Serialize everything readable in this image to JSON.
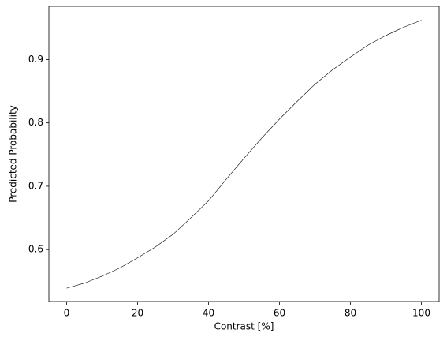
{
  "chart_data": {
    "type": "line",
    "x_label": "Contrast [%]",
    "y_label": "Predicted Probability",
    "x": [
      0,
      5,
      10,
      15,
      20,
      25,
      30,
      35,
      40,
      45,
      50,
      55,
      60,
      65,
      70,
      75,
      80,
      85,
      90,
      95,
      100
    ],
    "series": [
      {
        "color": "#000000",
        "values": [
          0.539,
          0.547,
          0.558,
          0.571,
          0.587,
          0.604,
          0.624,
          0.65,
          0.677,
          0.711,
          0.744,
          0.776,
          0.806,
          0.834,
          0.861,
          0.884,
          0.904,
          0.923,
          0.938,
          0.951,
          0.962
        ]
      }
    ],
    "xlim": [
      -5,
      105
    ],
    "xticks": [
      0,
      20,
      40,
      60,
      80,
      100
    ],
    "ylim": [
      0.518,
      0.984
    ],
    "yticks": [
      0.6,
      0.7,
      0.8,
      0.9
    ]
  }
}
